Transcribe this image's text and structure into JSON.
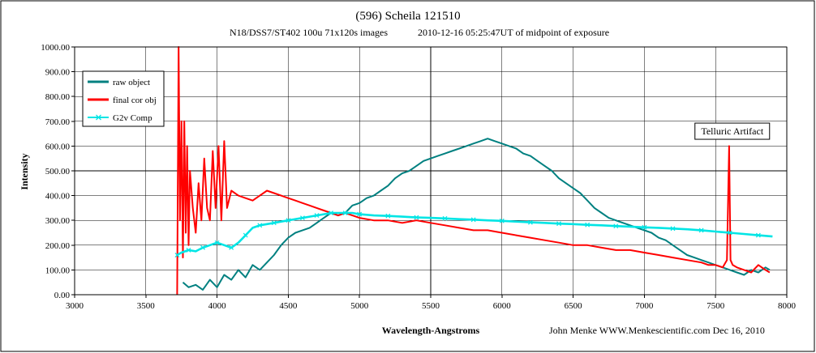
{
  "chart_data": {
    "type": "line",
    "title": "(596) Scheila 121510",
    "subtitle_left": "N18/DSS7/ST402  100u 71x120s images",
    "subtitle_right": "2010-12-16  05:25:47UT of midpoint of exposure",
    "xlabel": "Wavelength-Angstroms",
    "ylabel": "Intensity",
    "credit": "John Menke  WWW.Menkescientific.com  Dec 16, 2010",
    "xlim": [
      3000,
      8000
    ],
    "ylim": [
      0,
      1000
    ],
    "x_ticks": [
      3000,
      3500,
      4000,
      4500,
      5000,
      5500,
      6000,
      6500,
      7000,
      7500,
      8000
    ],
    "y_ticks": [
      0,
      100,
      200,
      300,
      400,
      500,
      600,
      700,
      800,
      900,
      1000
    ],
    "x_tick_labels": [
      "3000",
      "3500",
      "4000",
      "4500",
      "5000",
      "5500",
      "6000",
      "6500",
      "7000",
      "7500",
      "8000"
    ],
    "y_tick_labels": [
      "0.00",
      "100.00",
      "200.00",
      "300.00",
      "400.00",
      "500.00",
      "600.00",
      "700.00",
      "800.00",
      "900.00",
      "1000.00"
    ],
    "grid": true,
    "legend_position": "top-left",
    "annotations": [
      {
        "text": "Telluric Artifact",
        "x": 7600,
        "y": 660
      }
    ],
    "series": [
      {
        "name": "raw object",
        "color": "#008080",
        "x": [
          3760,
          3800,
          3850,
          3900,
          3950,
          4000,
          4050,
          4100,
          4150,
          4200,
          4250,
          4300,
          4350,
          4400,
          4450,
          4500,
          4550,
          4600,
          4650,
          4700,
          4750,
          4800,
          4850,
          4900,
          4950,
          5000,
          5050,
          5100,
          5150,
          5200,
          5250,
          5300,
          5350,
          5400,
          5450,
          5500,
          5550,
          5600,
          5650,
          5700,
          5750,
          5800,
          5850,
          5900,
          5950,
          6000,
          6050,
          6100,
          6150,
          6200,
          6250,
          6300,
          6350,
          6400,
          6450,
          6500,
          6550,
          6600,
          6650,
          6700,
          6750,
          6800,
          6850,
          6900,
          6950,
          7000,
          7050,
          7100,
          7150,
          7200,
          7250,
          7300,
          7350,
          7400,
          7450,
          7500,
          7550,
          7600,
          7650,
          7700,
          7750,
          7800,
          7850,
          7880
        ],
        "y": [
          50,
          30,
          40,
          20,
          60,
          30,
          80,
          60,
          100,
          70,
          120,
          100,
          130,
          160,
          200,
          230,
          250,
          260,
          270,
          290,
          310,
          330,
          320,
          330,
          360,
          370,
          390,
          400,
          420,
          440,
          470,
          490,
          500,
          520,
          540,
          550,
          560,
          570,
          580,
          590,
          600,
          610,
          620,
          630,
          620,
          610,
          600,
          590,
          570,
          560,
          540,
          520,
          500,
          470,
          450,
          430,
          410,
          380,
          350,
          330,
          310,
          300,
          290,
          280,
          270,
          260,
          250,
          230,
          220,
          200,
          180,
          160,
          150,
          140,
          130,
          120,
          110,
          100,
          90,
          80,
          100,
          90,
          110,
          100
        ]
      },
      {
        "name": "final cor obj",
        "color": "#ff0000",
        "x": [
          3720,
          3730,
          3740,
          3750,
          3760,
          3770,
          3780,
          3790,
          3800,
          3810,
          3830,
          3850,
          3870,
          3890,
          3910,
          3930,
          3950,
          3970,
          3990,
          4010,
          4030,
          4050,
          4070,
          4100,
          4150,
          4200,
          4250,
          4300,
          4350,
          4400,
          4450,
          4500,
          4550,
          4600,
          4650,
          4700,
          4750,
          4800,
          4850,
          4900,
          4950,
          5000,
          5100,
          5200,
          5300,
          5400,
          5500,
          5600,
          5700,
          5800,
          5900,
          6000,
          6100,
          6200,
          6300,
          6400,
          6500,
          6600,
          6700,
          6800,
          6900,
          7000,
          7100,
          7200,
          7300,
          7400,
          7450,
          7500,
          7550,
          7580,
          7595,
          7605,
          7620,
          7650,
          7700,
          7750,
          7800,
          7850,
          7880
        ],
        "y": [
          0,
          1000,
          300,
          700,
          150,
          700,
          250,
          600,
          200,
          500,
          350,
          250,
          450,
          300,
          550,
          350,
          300,
          580,
          350,
          600,
          300,
          620,
          350,
          420,
          400,
          390,
          380,
          400,
          420,
          410,
          400,
          390,
          380,
          370,
          360,
          350,
          340,
          330,
          320,
          330,
          320,
          310,
          300,
          300,
          290,
          300,
          290,
          280,
          270,
          260,
          260,
          250,
          240,
          230,
          220,
          210,
          200,
          200,
          190,
          180,
          180,
          170,
          160,
          150,
          140,
          130,
          120,
          120,
          110,
          140,
          600,
          140,
          120,
          110,
          100,
          90,
          120,
          100,
          90
        ]
      },
      {
        "name": "G2v Comp",
        "color": "#00e5e5",
        "x": [
          3720,
          3750,
          3800,
          3850,
          3900,
          3950,
          4000,
          4050,
          4100,
          4150,
          4200,
          4250,
          4300,
          4350,
          4400,
          4450,
          4500,
          4550,
          4600,
          4650,
          4700,
          4750,
          4800,
          4850,
          4900,
          4950,
          5000,
          5100,
          5200,
          5300,
          5400,
          5500,
          5600,
          5700,
          5800,
          5900,
          6000,
          6100,
          6200,
          6300,
          6400,
          6500,
          6600,
          6700,
          6800,
          6900,
          7000,
          7100,
          7200,
          7300,
          7400,
          7500,
          7600,
          7700,
          7800,
          7900
        ],
        "y": [
          160,
          170,
          180,
          175,
          190,
          200,
          210,
          200,
          190,
          210,
          240,
          270,
          280,
          285,
          290,
          295,
          300,
          305,
          310,
          315,
          320,
          325,
          330,
          330,
          330,
          330,
          325,
          320,
          318,
          315,
          312,
          310,
          308,
          305,
          303,
          300,
          298,
          295,
          292,
          290,
          287,
          285,
          282,
          280,
          277,
          275,
          272,
          270,
          267,
          264,
          260,
          255,
          250,
          245,
          240,
          235
        ]
      }
    ]
  }
}
